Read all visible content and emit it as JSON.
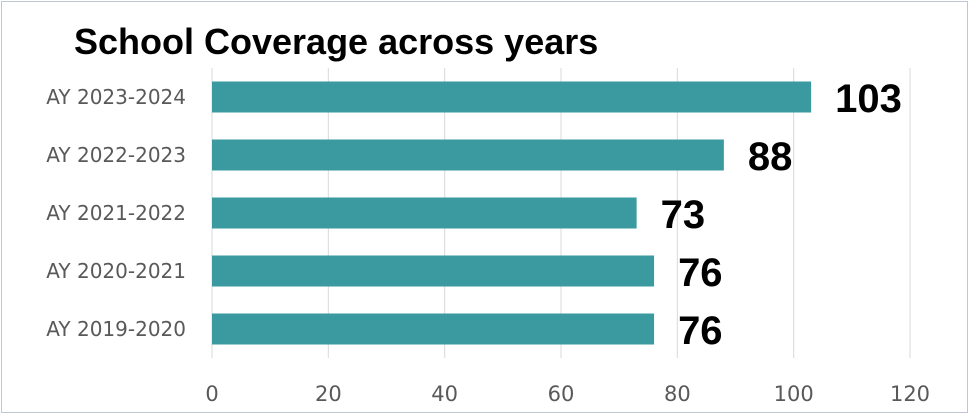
{
  "chart_data": {
    "type": "bar",
    "orientation": "horizontal",
    "title": "School Coverage across years",
    "categories": [
      "AY 2019-2020",
      "AY 2020-2021",
      "AY 2021-2022",
      "AY 2022-2023",
      "AY 2023-2024"
    ],
    "values": [
      76,
      76,
      73,
      88,
      103
    ],
    "xlim": [
      0,
      120
    ],
    "xticks": [
      0,
      20,
      40,
      60,
      80,
      100,
      120
    ],
    "grid": "vertical",
    "legend": "none",
    "bar_color": "#3a9aa0"
  }
}
